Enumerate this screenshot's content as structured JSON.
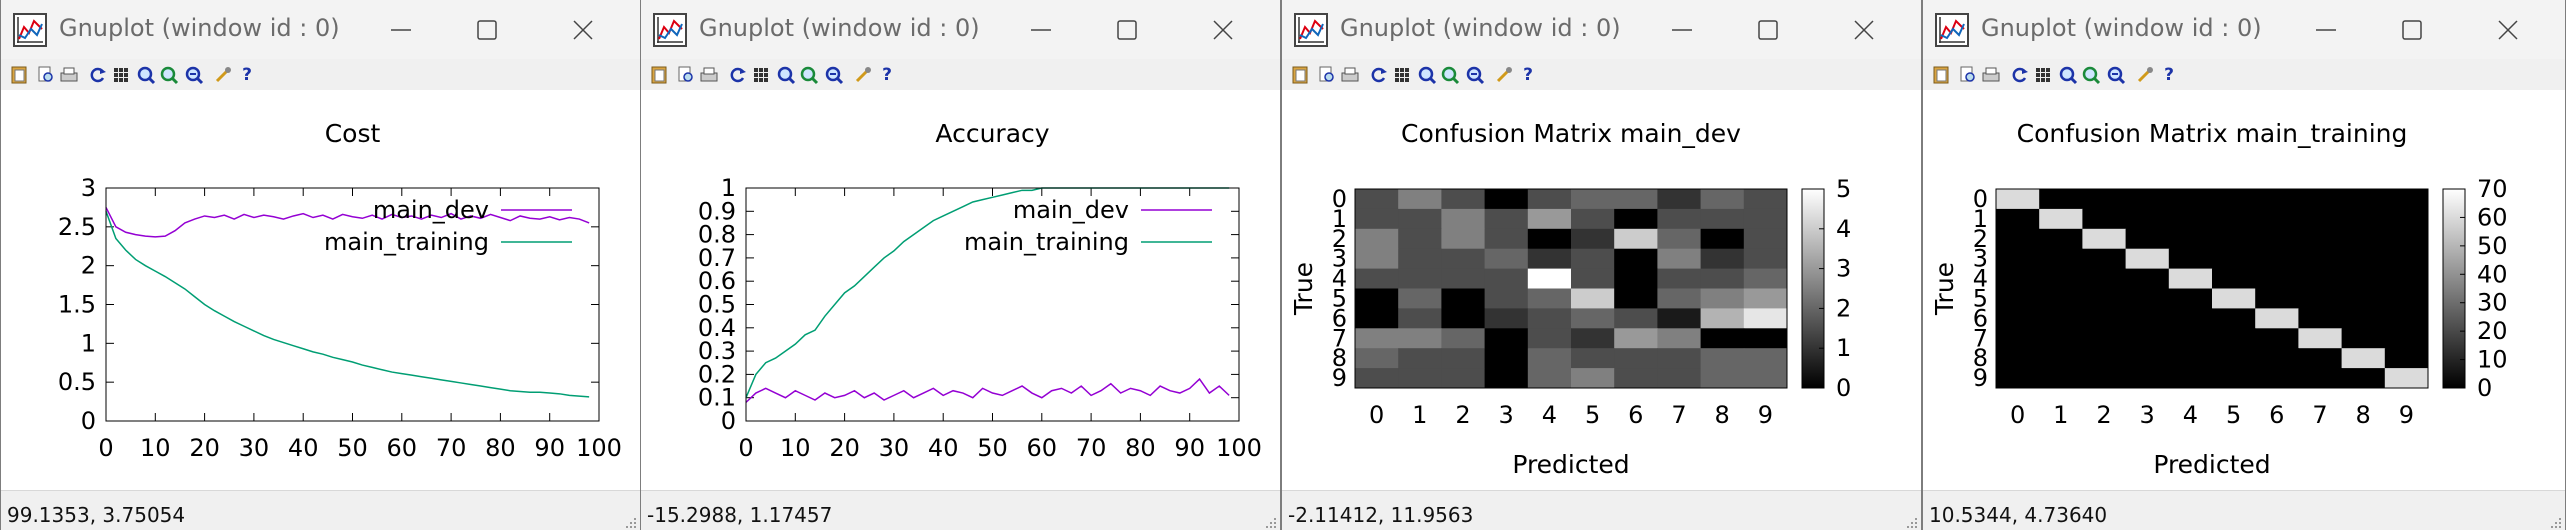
{
  "colors": {
    "dev": "#9400d3",
    "training": "#009e73"
  },
  "toolbar_icons": [
    "copy-icon",
    "print-preview-icon",
    "print-icon",
    "replot-icon",
    "grid-icon",
    "zoom-back-icon",
    "zoom-forward-icon",
    "unzoom-icon",
    "options-icon",
    "help-icon"
  ],
  "toolbar_help_glyph": "?",
  "windows": [
    {
      "title": "Gnuplot (window id : 0)",
      "status": "99.1353,  3.75054",
      "chart_data": {
        "type": "line",
        "title": "Cost",
        "xlabel": "",
        "ylabel": "",
        "xlim": [
          0,
          100
        ],
        "ylim": [
          0,
          3
        ],
        "x_ticks": [
          "0",
          "10",
          "20",
          "30",
          "40",
          "50",
          "60",
          "70",
          "80",
          "90",
          "100"
        ],
        "y_ticks": [
          "0",
          "0.5",
          "1",
          "1.5",
          "2",
          "2.5",
          "3"
        ],
        "legend": "top-right",
        "series": [
          {
            "name": "main_dev",
            "color": "#9400d3",
            "x": [
              0,
              2,
              4,
              6,
              8,
              10,
              12,
              14,
              16,
              18,
              20,
              22,
              24,
              26,
              28,
              30,
              32,
              34,
              36,
              38,
              40,
              42,
              44,
              46,
              48,
              50,
              52,
              54,
              56,
              58,
              60,
              62,
              64,
              66,
              68,
              70,
              72,
              74,
              76,
              78,
              80,
              82,
              84,
              86,
              88,
              90,
              92,
              94,
              96,
              98
            ],
            "y": [
              2.75,
              2.5,
              2.43,
              2.4,
              2.38,
              2.37,
              2.38,
              2.45,
              2.55,
              2.6,
              2.64,
              2.62,
              2.65,
              2.6,
              2.66,
              2.62,
              2.65,
              2.63,
              2.6,
              2.64,
              2.67,
              2.62,
              2.65,
              2.6,
              2.66,
              2.63,
              2.61,
              2.65,
              2.6,
              2.66,
              2.62,
              2.64,
              2.6,
              2.65,
              2.62,
              2.67,
              2.6,
              2.64,
              2.61,
              2.66,
              2.62,
              2.58,
              2.64,
              2.61,
              2.6,
              2.63,
              2.59,
              2.62,
              2.6,
              2.55
            ]
          },
          {
            "name": "main_training",
            "color": "#009e73",
            "x": [
              0,
              2,
              4,
              6,
              8,
              10,
              12,
              14,
              16,
              18,
              20,
              22,
              24,
              26,
              28,
              30,
              32,
              34,
              36,
              38,
              40,
              42,
              44,
              46,
              48,
              50,
              52,
              54,
              56,
              58,
              60,
              62,
              64,
              66,
              68,
              70,
              72,
              74,
              76,
              78,
              80,
              82,
              84,
              86,
              88,
              90,
              92,
              94,
              96,
              98
            ],
            "y": [
              2.7,
              2.35,
              2.2,
              2.08,
              2.0,
              1.93,
              1.86,
              1.78,
              1.7,
              1.6,
              1.5,
              1.42,
              1.35,
              1.28,
              1.22,
              1.16,
              1.1,
              1.05,
              1.01,
              0.97,
              0.93,
              0.89,
              0.86,
              0.82,
              0.79,
              0.76,
              0.72,
              0.69,
              0.66,
              0.63,
              0.61,
              0.59,
              0.57,
              0.55,
              0.53,
              0.51,
              0.49,
              0.47,
              0.45,
              0.43,
              0.41,
              0.39,
              0.38,
              0.37,
              0.37,
              0.36,
              0.35,
              0.33,
              0.32,
              0.31
            ]
          }
        ]
      }
    },
    {
      "title": "Gnuplot (window id : 0)",
      "status": "-15.2988,  1.17457",
      "chart_data": {
        "type": "line",
        "title": "Accuracy",
        "xlabel": "",
        "ylabel": "",
        "xlim": [
          0,
          100
        ],
        "ylim": [
          0,
          1
        ],
        "x_ticks": [
          "0",
          "10",
          "20",
          "30",
          "40",
          "50",
          "60",
          "70",
          "80",
          "90",
          "100"
        ],
        "y_ticks": [
          "0",
          "0.1",
          "0.2",
          "0.3",
          "0.4",
          "0.5",
          "0.6",
          "0.7",
          "0.8",
          "0.9",
          "1"
        ],
        "legend": "top-right",
        "series": [
          {
            "name": "main_dev",
            "color": "#9400d3",
            "x": [
              0,
              2,
              4,
              6,
              8,
              10,
              12,
              14,
              16,
              18,
              20,
              22,
              24,
              26,
              28,
              30,
              32,
              34,
              36,
              38,
              40,
              42,
              44,
              46,
              48,
              50,
              52,
              54,
              56,
              58,
              60,
              62,
              64,
              66,
              68,
              70,
              72,
              74,
              76,
              78,
              80,
              82,
              84,
              86,
              88,
              90,
              92,
              94,
              96,
              98
            ],
            "y": [
              0.08,
              0.12,
              0.14,
              0.12,
              0.1,
              0.13,
              0.11,
              0.09,
              0.12,
              0.1,
              0.11,
              0.13,
              0.1,
              0.12,
              0.09,
              0.11,
              0.13,
              0.1,
              0.12,
              0.14,
              0.11,
              0.13,
              0.12,
              0.1,
              0.14,
              0.12,
              0.11,
              0.13,
              0.15,
              0.12,
              0.1,
              0.13,
              0.14,
              0.12,
              0.15,
              0.11,
              0.13,
              0.16,
              0.12,
              0.14,
              0.13,
              0.11,
              0.15,
              0.13,
              0.12,
              0.14,
              0.18,
              0.12,
              0.15,
              0.11
            ]
          },
          {
            "name": "main_training",
            "color": "#009e73",
            "x": [
              0,
              2,
              4,
              6,
              8,
              10,
              12,
              14,
              16,
              18,
              20,
              22,
              24,
              26,
              28,
              30,
              32,
              34,
              36,
              38,
              40,
              42,
              44,
              46,
              48,
              50,
              52,
              54,
              56,
              58,
              60,
              62,
              64,
              66,
              68,
              70,
              72,
              74,
              76,
              78,
              80,
              82,
              84,
              86,
              88,
              90,
              92,
              94,
              96,
              98
            ],
            "y": [
              0.1,
              0.2,
              0.25,
              0.27,
              0.3,
              0.33,
              0.37,
              0.39,
              0.45,
              0.5,
              0.55,
              0.58,
              0.62,
              0.66,
              0.7,
              0.73,
              0.77,
              0.8,
              0.83,
              0.86,
              0.88,
              0.9,
              0.92,
              0.94,
              0.95,
              0.96,
              0.97,
              0.98,
              0.99,
              0.99,
              1.0,
              1.0,
              1.0,
              1.0,
              1.0,
              1.0,
              1.0,
              1.0,
              1.0,
              1.0,
              1.0,
              1.0,
              1.0,
              1.0,
              1.0,
              1.0,
              1.0,
              1.0,
              1.0,
              1.0
            ]
          }
        ]
      }
    },
    {
      "title": "Gnuplot (window id : 0)",
      "status": "-2.11412,  11.9563",
      "chart_data": {
        "type": "heatmap",
        "title": "Confusion Matrix main_dev",
        "xlabel": "Predicted",
        "ylabel": "True",
        "x_categories": [
          "0",
          "1",
          "2",
          "3",
          "4",
          "5",
          "6",
          "7",
          "8",
          "9"
        ],
        "y_categories": [
          "0",
          "1",
          "2",
          "3",
          "4",
          "5",
          "6",
          "7",
          "8",
          "9"
        ],
        "colorbar_ticks": [
          "0",
          "1",
          "2",
          "3",
          "4",
          "5"
        ],
        "vmin": 0,
        "vmax": 5,
        "values": [
          [
            1.5,
            2.5,
            1.5,
            0,
            1.5,
            2,
            2,
            1,
            2,
            1.5
          ],
          [
            1.5,
            1.5,
            2.5,
            1.5,
            3,
            1.5,
            0,
            1.5,
            1.5,
            1.5
          ],
          [
            2.5,
            1.5,
            2.5,
            1.5,
            0,
            1,
            4,
            2,
            0,
            1.5
          ],
          [
            2.5,
            1.5,
            1.5,
            2,
            1,
            1.5,
            0,
            2.5,
            1,
            1.5
          ],
          [
            1.5,
            1.5,
            1.5,
            1.5,
            5,
            1.5,
            0,
            1.5,
            1.5,
            2
          ],
          [
            0,
            2,
            0,
            1.5,
            2,
            4,
            0,
            2,
            2.5,
            3
          ],
          [
            0,
            1.5,
            0,
            1,
            1.5,
            2,
            1.5,
            0.5,
            3.5,
            4.5
          ],
          [
            2.5,
            2.5,
            2,
            0,
            1.5,
            1,
            3,
            2.5,
            0,
            0
          ],
          [
            2,
            1.5,
            1.5,
            0,
            2,
            1.5,
            1.5,
            1.5,
            2,
            2
          ],
          [
            1.5,
            1.5,
            1.5,
            0,
            2,
            2.5,
            1.5,
            1.5,
            2,
            2
          ]
        ]
      }
    },
    {
      "title": "Gnuplot (window id : 0)",
      "status": "10.5344,  4.73640",
      "chart_data": {
        "type": "heatmap",
        "title": "Confusion Matrix main_training",
        "xlabel": "Predicted",
        "ylabel": "True",
        "x_categories": [
          "0",
          "1",
          "2",
          "3",
          "4",
          "5",
          "6",
          "7",
          "8",
          "9"
        ],
        "y_categories": [
          "0",
          "1",
          "2",
          "3",
          "4",
          "5",
          "6",
          "7",
          "8",
          "9"
        ],
        "colorbar_ticks": [
          "0",
          "10",
          "20",
          "30",
          "40",
          "50",
          "60",
          "70"
        ],
        "vmin": 0,
        "vmax": 70,
        "values": [
          [
            60,
            0,
            0,
            0,
            0,
            0,
            0,
            0,
            0,
            0
          ],
          [
            0,
            60,
            0,
            0,
            0,
            0,
            0,
            0,
            0,
            0
          ],
          [
            0,
            0,
            60,
            0,
            0,
            0,
            0,
            0,
            0,
            0
          ],
          [
            0,
            0,
            0,
            60,
            0,
            0,
            0,
            0,
            0,
            0
          ],
          [
            0,
            0,
            0,
            0,
            60,
            0,
            0,
            0,
            0,
            0
          ],
          [
            0,
            0,
            0,
            0,
            0,
            60,
            0,
            0,
            0,
            0
          ],
          [
            0,
            0,
            0,
            0,
            0,
            0,
            60,
            0,
            0,
            0
          ],
          [
            0,
            0,
            0,
            0,
            0,
            0,
            0,
            60,
            0,
            0
          ],
          [
            0,
            0,
            0,
            0,
            0,
            0,
            0,
            0,
            60,
            0
          ],
          [
            0,
            0,
            0,
            0,
            0,
            0,
            0,
            0,
            0,
            60
          ]
        ]
      }
    }
  ]
}
